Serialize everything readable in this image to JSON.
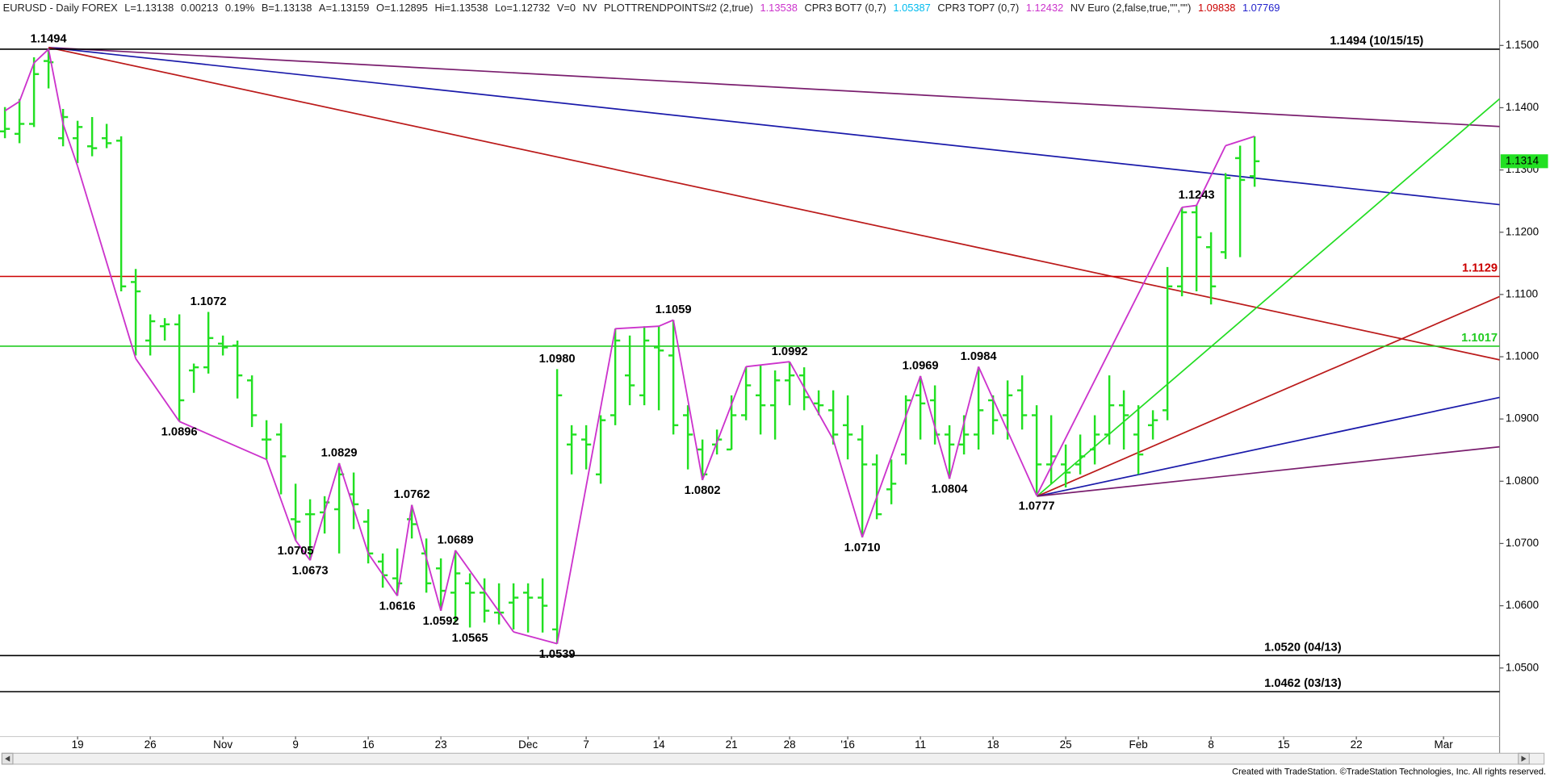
{
  "header": [
    {
      "text": "EURUSD - Daily  FOREX",
      "color": "#222222"
    },
    {
      "text": "L=1.13138",
      "color": "#222222"
    },
    {
      "text": "0.00213",
      "color": "#222222"
    },
    {
      "text": "0.19%",
      "color": "#222222"
    },
    {
      "text": "B=1.13138",
      "color": "#222222"
    },
    {
      "text": "A=1.13159",
      "color": "#222222"
    },
    {
      "text": "O=1.12895",
      "color": "#222222"
    },
    {
      "text": "Hi=1.13538",
      "color": "#222222"
    },
    {
      "text": "Lo=1.12732",
      "color": "#222222"
    },
    {
      "text": "V=0",
      "color": "#222222"
    },
    {
      "text": "NV",
      "color": "#222222"
    },
    {
      "text": "PLOTTRENDPOINTS#2 (2,true)",
      "color": "#222222"
    },
    {
      "text": "1.13538",
      "color": "#cc33cc"
    },
    {
      "text": "CPR3 BOT7 (0,7)",
      "color": "#222222"
    },
    {
      "text": "1.05387",
      "color": "#00bbee"
    },
    {
      "text": "CPR3 TOP7 (0,7)",
      "color": "#222222"
    },
    {
      "text": "1.12432",
      "color": "#cc33cc"
    },
    {
      "text": "NV Euro (2,false,true,\"\",\"\")",
      "color": "#222222"
    },
    {
      "text": "1.09838",
      "color": "#cc0000"
    },
    {
      "text": "1.07769",
      "color": "#2222cc"
    }
  ],
  "footer": "Created with TradeStation. ©TradeStation Technologies, Inc. All rights reserved.",
  "chart_data": {
    "type": "ohlc",
    "color": "#22e022",
    "categories": [
      null,
      null,
      null,
      null,
      null,
      "19",
      null,
      null,
      null,
      null,
      "26",
      null,
      null,
      null,
      null,
      "Nov",
      null,
      null,
      null,
      null,
      "9",
      null,
      null,
      null,
      null,
      "16",
      null,
      null,
      null,
      null,
      "23",
      null,
      null,
      null,
      null,
      null,
      "Dec",
      null,
      null,
      null,
      "7",
      null,
      null,
      null,
      null,
      "14",
      null,
      null,
      null,
      null,
      "21",
      null,
      null,
      null,
      "28",
      null,
      null,
      null,
      "'16",
      null,
      null,
      null,
      null,
      "11",
      null,
      null,
      null,
      null,
      "18",
      null,
      null,
      null,
      null,
      "25",
      null,
      null,
      null,
      null,
      "Feb",
      null,
      null,
      null,
      null,
      "8",
      null,
      null,
      null,
      null,
      "15",
      null,
      null,
      null,
      null,
      "22",
      null,
      null,
      null,
      null,
      null,
      "Mar",
      null,
      null,
      null
    ],
    "open": [
      1.1362,
      1.1358,
      1.1374,
      1.1475,
      1.1351,
      1.1351,
      1.1338,
      1.1351,
      1.1347,
      1.112,
      1.1026,
      1.1049,
      1.1052,
      1.0978,
      1.0983,
      1.1021,
      1.1018,
      1.0962,
      1.0867,
      1.0875,
      1.0739,
      1.0747,
      1.075,
      1.0755,
      1.0779,
      1.0735,
      1.0671,
      1.0644,
      1.0739,
      1.0684,
      1.066,
      1.0621,
      1.0636,
      1.0621,
      1.0589,
      1.0605,
      1.0621,
      1.0613,
      1.0562,
      1.0859,
      1.0867,
      1.0811,
      1.0906,
      1.097,
      1.0938,
      1.1015,
      1.1002,
      1.0906,
      1.0851,
      1.0859,
      1.0851,
      1.0906,
      1.0938,
      1.0922,
      1.0962,
      1.097,
      1.0925,
      1.0914,
      1.089,
      1.0867,
      1.0827,
      1.0787,
      1.0843,
      1.0938,
      1.093,
      1.0875,
      1.0859,
      1.0875,
      1.093,
      1.0906,
      1.0946,
      1.0906,
      1.0827,
      1.0827,
      1.0827,
      1.0851,
      1.0875,
      1.0922,
      1.0875,
      1.089,
      1.0914,
      1.1113,
      1.1232,
      1.1176,
      1.1168,
      1.1319,
      1.129,
      null,
      null,
      null,
      null,
      null,
      null,
      null,
      null,
      null,
      null,
      null,
      null,
      null,
      null,
      null,
      null
    ],
    "high": [
      1.1401,
      1.1414,
      1.1481,
      1.1494,
      1.1398,
      1.1379,
      1.1385,
      1.1374,
      1.1354,
      1.1141,
      1.1068,
      1.1062,
      1.1068,
      1.0989,
      1.1072,
      1.1034,
      1.1026,
      1.097,
      1.0898,
      1.0893,
      1.0796,
      1.0771,
      1.0776,
      1.0829,
      1.0814,
      1.0755,
      1.0684,
      1.0692,
      1.0762,
      1.0708,
      1.0676,
      1.0689,
      1.0652,
      1.0644,
      1.0636,
      1.0636,
      1.0636,
      1.0644,
      1.098,
      1.089,
      1.089,
      1.0906,
      1.1045,
      1.1034,
      1.1049,
      1.1049,
      1.1059,
      1.0922,
      1.0867,
      1.0883,
      1.0938,
      1.0984,
      1.0986,
      1.0978,
      1.0992,
      1.0983,
      1.0946,
      1.0946,
      1.0938,
      1.089,
      1.0843,
      1.0835,
      1.0938,
      1.0969,
      1.0954,
      1.089,
      1.0906,
      1.0984,
      1.0938,
      1.0962,
      1.097,
      1.0922,
      1.0906,
      1.0859,
      1.0875,
      1.0906,
      1.097,
      1.0946,
      1.0922,
      1.0914,
      1.1144,
      1.124,
      1.1243,
      1.12,
      1.1295,
      1.1339,
      1.1354,
      null,
      null,
      null,
      null,
      null,
      null,
      null,
      null,
      null,
      null,
      null,
      null,
      null,
      null,
      null,
      null
    ],
    "low": [
      1.1351,
      1.1343,
      1.1369,
      1.1431,
      1.1338,
      1.1311,
      1.1322,
      1.1335,
      1.1105,
      1.1002,
      1.1002,
      1.1026,
      1.0896,
      1.0942,
      1.0973,
      1.1002,
      1.0933,
      1.0887,
      1.0835,
      1.0779,
      1.0705,
      1.0673,
      1.0716,
      1.0684,
      1.0723,
      1.0668,
      1.0629,
      1.0616,
      1.0708,
      1.0621,
      1.0592,
      1.0573,
      1.0565,
      1.0573,
      1.057,
      1.0562,
      1.0557,
      1.0557,
      1.0539,
      1.0811,
      1.0819,
      1.0796,
      1.089,
      1.0922,
      1.0922,
      1.0914,
      1.0875,
      1.0819,
      1.0802,
      1.0843,
      1.0851,
      1.0898,
      1.0875,
      1.0867,
      1.0922,
      1.0914,
      1.0906,
      1.0859,
      1.0835,
      1.071,
      1.0739,
      1.0763,
      1.0827,
      1.0867,
      1.0859,
      1.0804,
      1.0843,
      1.0851,
      1.0875,
      1.0867,
      1.0883,
      1.0777,
      1.0796,
      1.079,
      1.0811,
      1.0827,
      1.0859,
      1.0851,
      1.0811,
      1.0867,
      1.0898,
      1.1097,
      1.1105,
      1.1084,
      1.1157,
      1.116,
      1.1273,
      null,
      null,
      null,
      null,
      null,
      null,
      null,
      null,
      null,
      null,
      null,
      null,
      null,
      null,
      null,
      null
    ],
    "close": [
      1.1366,
      1.1374,
      1.1454,
      1.1473,
      1.1385,
      1.1369,
      1.1335,
      1.1343,
      1.1113,
      1.1105,
      1.1057,
      1.1052,
      1.093,
      1.0983,
      1.103,
      1.1015,
      1.097,
      1.0906,
      1.0867,
      1.084,
      1.0735,
      1.0747,
      1.0766,
      1.0811,
      1.0763,
      1.0684,
      1.0649,
      1.0636,
      1.0731,
      1.0636,
      1.0624,
      1.0652,
      1.0621,
      1.0592,
      1.0589,
      1.0613,
      1.0613,
      1.06,
      1.0938,
      1.0875,
      1.0859,
      1.0898,
      1.1026,
      1.0954,
      1.1026,
      1.101,
      1.089,
      1.0875,
      1.0811,
      1.0867,
      1.0906,
      1.0954,
      1.0922,
      1.0962,
      1.097,
      1.0935,
      1.0922,
      1.0875,
      1.0875,
      1.0827,
      1.0747,
      1.0796,
      1.093,
      1.0925,
      1.0875,
      1.0859,
      1.0875,
      1.0914,
      1.0898,
      1.0938,
      1.0906,
      1.0827,
      1.084,
      1.0814,
      1.084,
      1.0875,
      1.0922,
      1.0906,
      1.0843,
      1.0898,
      1.1113,
      1.1232,
      1.1192,
      1.1113,
      1.1287,
      1.1284,
      1.1314,
      null,
      null,
      null,
      null,
      null,
      null,
      null,
      null,
      null,
      null,
      null,
      null,
      null,
      null,
      null,
      null
    ],
    "high_labels": [
      null,
      null,
      null,
      "1.1494",
      null,
      null,
      null,
      null,
      null,
      null,
      null,
      null,
      null,
      null,
      "1.1072",
      null,
      null,
      null,
      null,
      null,
      null,
      null,
      null,
      "1.0829",
      null,
      null,
      null,
      null,
      "1.0762",
      null,
      null,
      "1.0689",
      null,
      null,
      null,
      null,
      null,
      null,
      "1.0980",
      null,
      null,
      null,
      null,
      null,
      null,
      null,
      "1.1059",
      null,
      null,
      null,
      null,
      null,
      null,
      null,
      "1.0992",
      null,
      null,
      null,
      null,
      null,
      null,
      null,
      null,
      "1.0969",
      null,
      null,
      null,
      "1.0984",
      null,
      null,
      null,
      null,
      null,
      null,
      null,
      null,
      null,
      null,
      null,
      null,
      null,
      null,
      "1.1243",
      null,
      null,
      null,
      null,
      null,
      null,
      null,
      null,
      null,
      null,
      null,
      null,
      null,
      null,
      null,
      null,
      null,
      null,
      null,
      null
    ],
    "low_labels": [
      null,
      null,
      null,
      null,
      null,
      null,
      null,
      null,
      null,
      null,
      null,
      null,
      "1.0896",
      null,
      null,
      null,
      null,
      null,
      null,
      null,
      "1.0705",
      "1.0673",
      null,
      null,
      null,
      null,
      null,
      "1.0616",
      null,
      null,
      "1.0592",
      null,
      "1.0565",
      null,
      null,
      null,
      null,
      null,
      "1.0539",
      null,
      null,
      null,
      null,
      null,
      null,
      null,
      null,
      null,
      "1.0802",
      null,
      null,
      null,
      null,
      null,
      null,
      null,
      null,
      null,
      null,
      "1.0710",
      null,
      null,
      null,
      null,
      null,
      "1.0804",
      null,
      null,
      null,
      null,
      null,
      "1.0777",
      null,
      null,
      null,
      null,
      null,
      null,
      null,
      null,
      null,
      null,
      null,
      null,
      null,
      null,
      null,
      null,
      null,
      null,
      null,
      null,
      null,
      null,
      null,
      null,
      null,
      null,
      null,
      null,
      null,
      null,
      null
    ],
    "zigzag": {
      "color": "#cc33cc",
      "values": [
        1.1395,
        1.141,
        1.1472,
        1.1494,
        1.1374,
        1.1306,
        null,
        null,
        null,
        1.0997,
        null,
        null,
        1.0896,
        null,
        null,
        null,
        null,
        null,
        1.0835,
        null,
        1.0705,
        1.0673,
        null,
        1.0829,
        null,
        1.0684,
        null,
        1.0616,
        1.0762,
        null,
        1.0592,
        1.0689,
        null,
        null,
        null,
        1.0558,
        null,
        null,
        1.0539,
        null,
        null,
        null,
        1.1045,
        null,
        null,
        1.1049,
        1.1059,
        null,
        1.0802,
        null,
        null,
        1.0984,
        null,
        null,
        1.0992,
        null,
        null,
        1.0867,
        null,
        1.071,
        null,
        null,
        null,
        1.0969,
        null,
        1.0804,
        null,
        1.0984,
        null,
        null,
        null,
        1.0777,
        null,
        null,
        null,
        null,
        null,
        null,
        null,
        null,
        null,
        1.124,
        1.1243,
        null,
        1.1339,
        null,
        1.1354,
        null,
        null,
        null,
        null,
        null,
        null,
        null,
        null,
        null,
        null,
        null,
        null,
        null,
        null,
        null,
        null
      ]
    },
    "levels": [
      {
        "value": 1.1494,
        "label": "1.1494 (10/15/15)",
        "color": "#000000"
      },
      {
        "value": 1.1129,
        "label": "1.1129",
        "color": "#cc0000"
      },
      {
        "value": 1.1017,
        "label": "1.1017",
        "color": "#22cc22"
      },
      {
        "value": 1.052,
        "label": "1.0520 (04/13)",
        "color": "#000000"
      },
      {
        "value": 1.0462,
        "label": "1.0462 (03/13)",
        "color": "#000000"
      }
    ],
    "last_price": {
      "value": 1.1314,
      "label": "1.1314"
    },
    "ylim": [
      1.039,
      1.1573
    ],
    "yticks": [
      {
        "value": 1.05,
        "label": "1.0500"
      },
      {
        "value": 1.06,
        "label": "1.0600"
      },
      {
        "value": 1.07,
        "label": "1.0700"
      },
      {
        "value": 1.08,
        "label": "1.0800"
      },
      {
        "value": 1.09,
        "label": "1.0900"
      },
      {
        "value": 1.1,
        "label": "1.1000"
      },
      {
        "value": 1.11,
        "label": "1.1100"
      },
      {
        "value": 1.12,
        "label": "1.1200"
      },
      {
        "value": 1.13,
        "label": "1.1300"
      },
      {
        "value": 1.14,
        "label": "1.1400"
      },
      {
        "value": 1.15,
        "label": "1.1500"
      }
    ]
  }
}
